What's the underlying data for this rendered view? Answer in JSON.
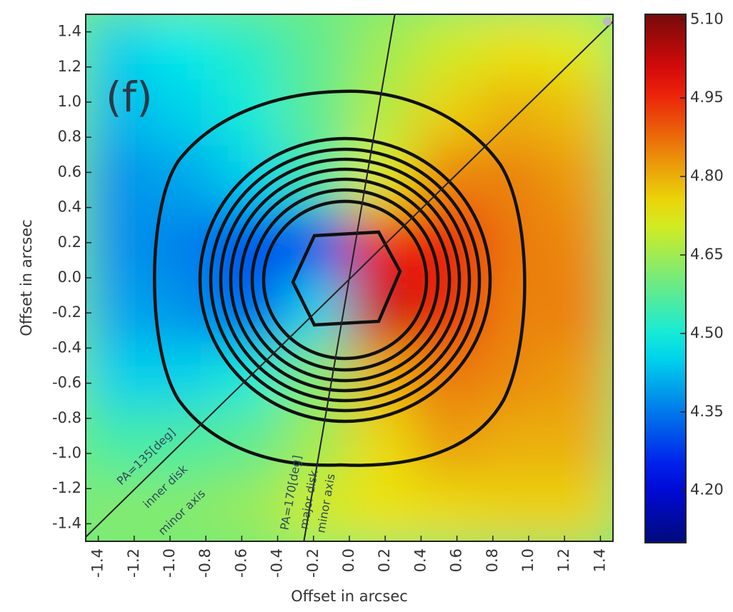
{
  "chart_data": {
    "type": "heatmap",
    "xlabel": "Offset in arcsec",
    "ylabel": "Offset in arcsec",
    "panel_label": "(f)",
    "annotations": [
      "PA=135[deg]",
      "inner disk",
      "minor axis",
      "PA=170[deg]",
      "major disk",
      "minor axis"
    ],
    "colormap": "jet",
    "xlim": [
      -1.47,
      1.47
    ],
    "ylim": [
      -1.5,
      1.5
    ],
    "xticks": [
      -1.4,
      -1.2,
      {
        "value": -1,
        "label": "-1.0"
      },
      -0.8,
      -0.6,
      -0.4,
      -0.2,
      {
        "value": 0,
        "label": "0.0"
      },
      0.2,
      0.4,
      0.6,
      0.8,
      {
        "value": 1,
        "label": "1.0"
      },
      1.2,
      1.4
    ],
    "yticks": [
      1.4,
      1.2,
      {
        "value": 1,
        "label": "1.0"
      },
      0.8,
      0.6,
      0.4,
      0.2,
      {
        "value": 0,
        "label": "0.0"
      },
      -0.2,
      -0.4,
      -0.6,
      -0.8,
      {
        "value": -1,
        "label": "-1.0"
      },
      -1.2,
      -1.4
    ],
    "clim": [
      4.1,
      5.11
    ],
    "cticks": [
      {
        "value": 5.1,
        "label": "5.10"
      },
      4.95,
      {
        "value": 4.8,
        "label": "4.80"
      },
      4.65,
      {
        "value": 4.5,
        "label": "4.50"
      },
      4.35,
      {
        "value": 4.2,
        "label": "4.20"
      }
    ],
    "z": [
      [
        4.45,
        4.48,
        4.52,
        4.58,
        4.65,
        4.7,
        4.74,
        4.72
      ],
      [
        4.42,
        4.45,
        4.5,
        4.58,
        4.67,
        4.76,
        4.8,
        4.78
      ],
      [
        4.38,
        4.4,
        4.45,
        4.55,
        4.72,
        4.85,
        4.85,
        4.82
      ],
      [
        4.38,
        4.36,
        4.3,
        4.3,
        4.95,
        4.98,
        4.86,
        4.84
      ],
      [
        4.4,
        4.38,
        4.32,
        4.45,
        5.02,
        4.95,
        4.85,
        4.85
      ],
      [
        4.45,
        4.45,
        4.5,
        4.62,
        4.8,
        4.86,
        4.84,
        4.82
      ],
      [
        4.55,
        4.56,
        4.58,
        4.65,
        4.75,
        4.82,
        4.8,
        4.8
      ],
      [
        4.62,
        4.62,
        4.64,
        4.7,
        4.74,
        4.75,
        4.76,
        4.76
      ]
    ]
  }
}
